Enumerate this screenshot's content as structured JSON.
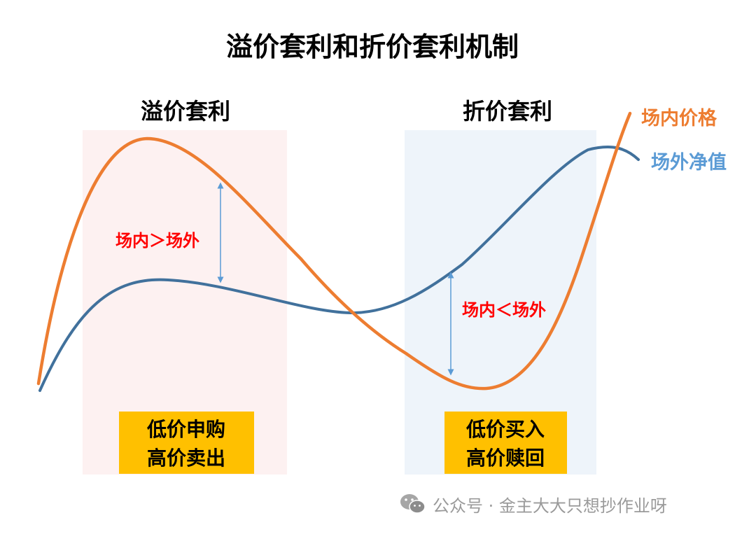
{
  "title": "溢价套利和折价套利机制",
  "premium": {
    "heading": "溢价套利",
    "compare_label": "场内＞场外",
    "box_lines": [
      "低价申购",
      "高价卖出"
    ]
  },
  "discount": {
    "heading": "折价套利",
    "compare_label": "场内＜场外",
    "box_lines": [
      "低价买入",
      "高价赎回"
    ]
  },
  "series": {
    "market_price": "场内价格",
    "nav": "场外净值"
  },
  "colors": {
    "market_price": "#ED7D31",
    "nav": "#41719C",
    "nav_label": "#5B9BD5",
    "arrow": "#5B9BD5",
    "compare_text": "#FF0000",
    "box_fill": "#FFC000",
    "premium_zone": "#FDF1F1",
    "discount_zone": "#EEF4FA"
  },
  "watermark": {
    "icon": "wechat-icon",
    "text": "公众号 · 金主大大只想抄作业呀"
  }
}
